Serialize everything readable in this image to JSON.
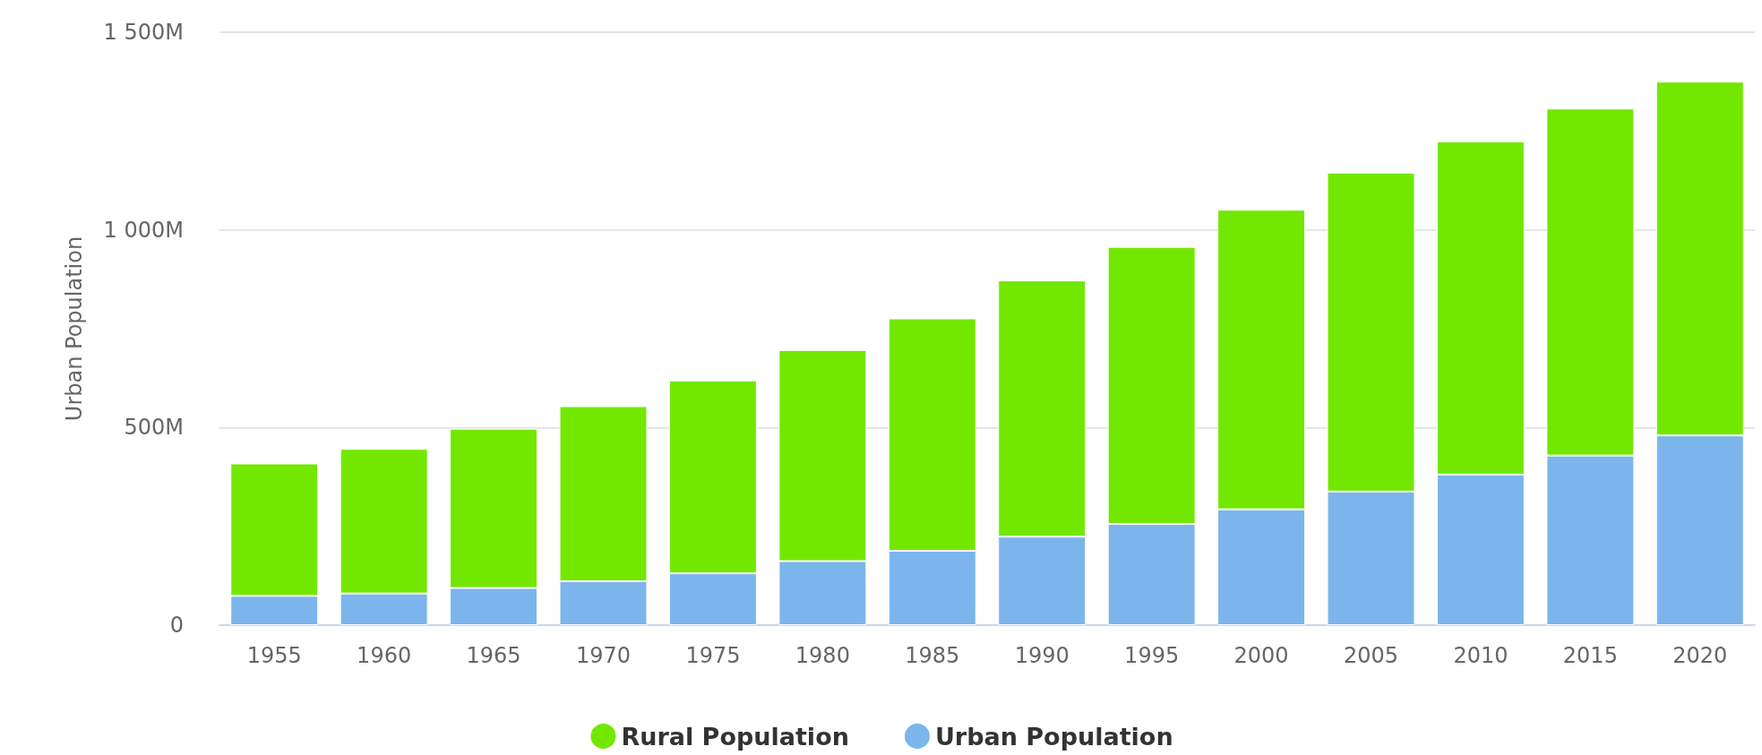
{
  "chart_data": {
    "type": "bar",
    "ylabel": "Urban Population",
    "stacked": true,
    "categories": [
      "1955",
      "1960",
      "1965",
      "1970",
      "1975",
      "1980",
      "1985",
      "1990",
      "1995",
      "2000",
      "2005",
      "2010",
      "2015",
      "2020"
    ],
    "series": [
      {
        "name": "Urban Population",
        "color": "#7cb5ec",
        "values": [
          74,
          80,
          94,
          111,
          131,
          162,
          188,
          224,
          256,
          293,
          338,
          381,
          429,
          480
        ]
      },
      {
        "name": "Rural Population",
        "color": "#72e800",
        "values": [
          335,
          366,
          403,
          443,
          488,
          534,
          588,
          648,
          701,
          758,
          807,
          843,
          878,
          895
        ]
      }
    ],
    "ylim": [
      0,
      1500
    ],
    "yticks": [
      0,
      {
        "value": 500,
        "label": "500M"
      },
      {
        "value": 1000,
        "label": "1 000M"
      },
      {
        "value": 1500,
        "label": "1 500M"
      }
    ],
    "grid": "y",
    "legend": "bottom"
  }
}
